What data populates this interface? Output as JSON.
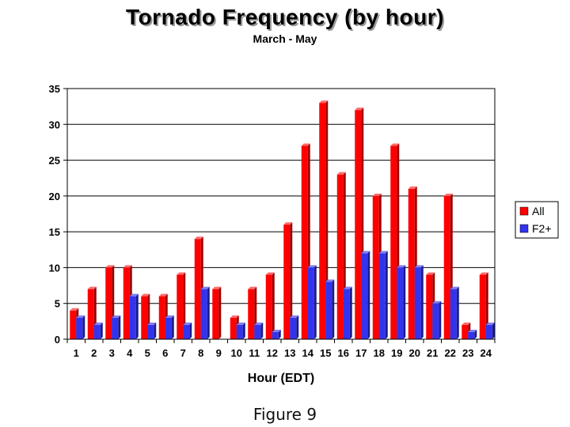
{
  "chart_data": {
    "type": "bar",
    "title": "Tornado Frequency (by hour)",
    "subtitle": "March - May",
    "xlabel": "Hour (EDT)",
    "ylabel": "",
    "ylim": [
      0,
      35
    ],
    "yticks": [
      0,
      5,
      10,
      15,
      20,
      25,
      30,
      35
    ],
    "grid": true,
    "legend_position": "right",
    "categories": [
      "1",
      "2",
      "3",
      "4",
      "5",
      "6",
      "7",
      "8",
      "9",
      "10",
      "11",
      "12",
      "13",
      "14",
      "15",
      "16",
      "17",
      "18",
      "19",
      "20",
      "21",
      "22",
      "23",
      "24"
    ],
    "series": [
      {
        "name": "All",
        "color": "#ff0000",
        "values": [
          4,
          7,
          10,
          10,
          6,
          6,
          9,
          14,
          7,
          3,
          7,
          9,
          16,
          27,
          33,
          23,
          32,
          20,
          27,
          21,
          9,
          20,
          2,
          9
        ]
      },
      {
        "name": "F2+",
        "color": "#3333ee",
        "values": [
          3,
          2,
          3,
          6,
          2,
          3,
          2,
          7,
          0,
          2,
          2,
          1,
          3,
          10,
          8,
          7,
          12,
          12,
          10,
          10,
          5,
          7,
          1,
          2
        ]
      }
    ]
  },
  "caption": "Figure 9"
}
